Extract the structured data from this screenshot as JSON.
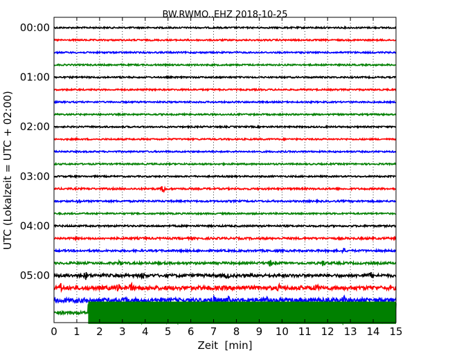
{
  "chart_data": {
    "type": "line",
    "subtype": "helicorder",
    "title": "BW.RWMO..EHZ 2018-10-25",
    "xlabel": "Zeit  [min]",
    "ylabel": "UTC (Lokalzeit = UTC + 02:00)",
    "xlim": [
      0,
      15
    ],
    "xticks": [
      0,
      1,
      2,
      3,
      4,
      5,
      6,
      7,
      8,
      9,
      10,
      11,
      12,
      13,
      14,
      15
    ],
    "x_grid": "dotted",
    "minutes_per_line": 15,
    "line_colors": [
      "#000000",
      "#ff0000",
      "#0000ff",
      "#008000"
    ],
    "ytick_labels": [
      "00:00",
      "01:00",
      "02:00",
      "03:00",
      "04:00",
      "05:00"
    ],
    "traces": [
      {
        "start": "00:00",
        "color": "#000000",
        "amplitude": 0.06
      },
      {
        "start": "00:15",
        "color": "#ff0000",
        "amplitude": 0.06
      },
      {
        "start": "00:30",
        "color": "#0000ff",
        "amplitude": 0.06
      },
      {
        "start": "00:45",
        "color": "#008000",
        "amplitude": 0.06
      },
      {
        "start": "01:00",
        "color": "#000000",
        "amplitude": 0.06
      },
      {
        "start": "01:15",
        "color": "#ff0000",
        "amplitude": 0.06
      },
      {
        "start": "01:30",
        "color": "#0000ff",
        "amplitude": 0.06
      },
      {
        "start": "01:45",
        "color": "#008000",
        "amplitude": 0.06
      },
      {
        "start": "02:00",
        "color": "#000000",
        "amplitude": 0.06
      },
      {
        "start": "02:15",
        "color": "#ff0000",
        "amplitude": 0.06
      },
      {
        "start": "02:30",
        "color": "#0000ff",
        "amplitude": 0.06
      },
      {
        "start": "02:45",
        "color": "#008000",
        "amplitude": 0.06
      },
      {
        "start": "03:00",
        "color": "#000000",
        "amplitude": 0.06
      },
      {
        "start": "03:15",
        "color": "#ff0000",
        "amplitude": 0.07,
        "events": [
          {
            "t": 4.8,
            "amp": 0.35
          }
        ]
      },
      {
        "start": "03:30",
        "color": "#0000ff",
        "amplitude": 0.07,
        "events": [
          {
            "t": 1.1,
            "amp": 0.15
          }
        ]
      },
      {
        "start": "03:45",
        "color": "#008000",
        "amplitude": 0.06
      },
      {
        "start": "04:00",
        "color": "#000000",
        "amplitude": 0.07
      },
      {
        "start": "04:15",
        "color": "#ff0000",
        "amplitude": 0.08
      },
      {
        "start": "04:30",
        "color": "#0000ff",
        "amplitude": 0.08,
        "events": [
          {
            "t": 12.7,
            "amp": 0.2
          }
        ]
      },
      {
        "start": "04:45",
        "color": "#008000",
        "amplitude": 0.09,
        "events": [
          {
            "t": 2.9,
            "amp": 0.15
          },
          {
            "t": 9.5,
            "amp": 0.25
          },
          {
            "t": 11.8,
            "amp": 0.2
          }
        ]
      },
      {
        "start": "05:00",
        "color": "#000000",
        "amplitude": 0.12,
        "events": [
          {
            "t": 1.4,
            "amp": 0.25
          },
          {
            "t": 3.9,
            "amp": 0.2
          },
          {
            "t": 7.6,
            "amp": 0.2
          },
          {
            "t": 13.9,
            "amp": 0.2
          }
        ]
      },
      {
        "start": "05:15",
        "color": "#ff0000",
        "amplitude": 0.16,
        "events": [
          {
            "t": 0.3,
            "amp": 0.25
          },
          {
            "t": 2.8,
            "amp": 0.25
          },
          {
            "t": 3.4,
            "amp": 0.25
          },
          {
            "t": 9.9,
            "amp": 0.2
          },
          {
            "t": 11.5,
            "amp": 0.2
          }
        ]
      },
      {
        "start": "05:30",
        "color": "#0000ff",
        "amplitude": 0.18,
        "events": [
          {
            "t": 3.2,
            "amp": 0.3
          },
          {
            "t": 7.0,
            "amp": 0.3
          },
          {
            "t": 7.6,
            "amp": 0.3
          },
          {
            "t": 9.4,
            "amp": 0.3
          },
          {
            "t": 12.7,
            "amp": 0.25
          }
        ]
      },
      {
        "start": "05:45",
        "color": "#008000",
        "amplitude": 0.12,
        "saturated_from": 1.5,
        "saturated_amp": 0.9,
        "saturated_until": 15
      }
    ]
  }
}
